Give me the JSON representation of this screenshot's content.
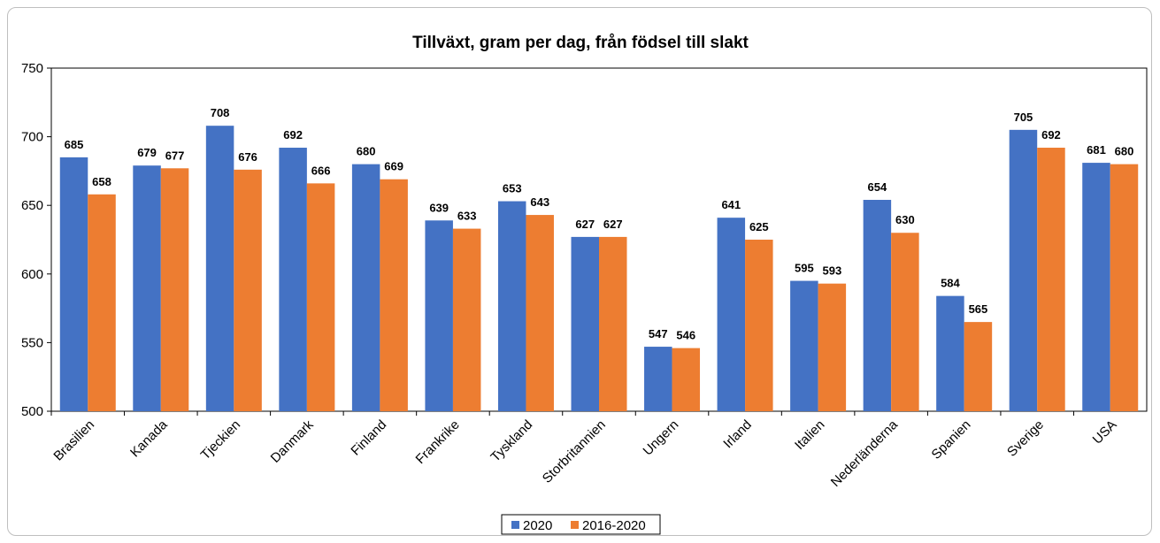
{
  "chart_data": {
    "type": "bar",
    "title": "Tillväxt, gram per dag, från födsel till slakt",
    "xlabel": "",
    "ylabel": "",
    "ylim": [
      500,
      750
    ],
    "yticks": [
      500,
      550,
      600,
      650,
      700,
      750
    ],
    "grid": false,
    "legend_position": "bottom-center",
    "categories": [
      "Brasilien",
      "Kanada",
      "Tjeckien",
      "Danmark",
      "Finland",
      "Frankrike",
      "Tyskland",
      "Storbritannien",
      "Ungern",
      "Irland",
      "Italien",
      "Nederländerna",
      "Spanien",
      "Sverige",
      "USA"
    ],
    "series": [
      {
        "name": "2020",
        "color": "#4472C4",
        "values": [
          685,
          679,
          708,
          692,
          680,
          639,
          653,
          627,
          547,
          641,
          595,
          654,
          584,
          705,
          681
        ]
      },
      {
        "name": "2016-2020",
        "color": "#ED7D31",
        "values": [
          658,
          677,
          676,
          666,
          669,
          633,
          643,
          627,
          546,
          625,
          593,
          630,
          565,
          692,
          680
        ]
      }
    ]
  }
}
